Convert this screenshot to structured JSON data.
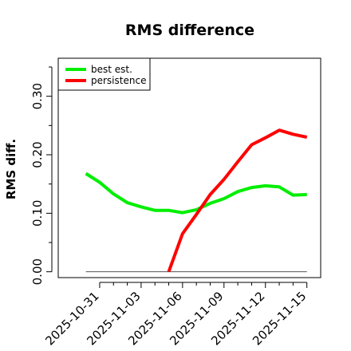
{
  "chart_data": {
    "type": "line",
    "title": "RMS difference",
    "ylabel": "RMS diff.",
    "xlabel": "",
    "ylim": [
      -0.01,
      0.365
    ],
    "yticks": [
      0.0,
      0.1,
      0.2,
      0.3
    ],
    "ytick_labels": [
      "0.00",
      "0.10",
      "0.20",
      "0.30"
    ],
    "yminor_ticks": [
      0.05,
      0.15,
      0.25,
      0.35
    ],
    "xlim": [
      "2025-10-28",
      "2025-11-16"
    ],
    "xticks": [
      "2025-10-31",
      "2025-11-03",
      "2025-11-06",
      "2025-11-09",
      "2025-11-12",
      "2025-11-15"
    ],
    "xminor_ticks": [
      "2025-11-01",
      "2025-11-02",
      "2025-11-04",
      "2025-11-05",
      "2025-11-07",
      "2025-11-08",
      "2025-11-10",
      "2025-11-11",
      "2025-11-13",
      "2025-11-14"
    ],
    "legend_position": "top-left",
    "zero_line": 0,
    "series": [
      {
        "name": "best est.",
        "color": "#00ee00",
        "x": [
          "2025-10-30",
          "2025-10-31",
          "2025-11-01",
          "2025-11-02",
          "2025-11-03",
          "2025-11-04",
          "2025-11-05",
          "2025-11-06",
          "2025-11-07",
          "2025-11-08",
          "2025-11-09",
          "2025-11-10",
          "2025-11-11",
          "2025-11-12",
          "2025-11-13",
          "2025-11-14",
          "2025-11-15"
        ],
        "values": [
          0.168,
          0.153,
          0.133,
          0.118,
          0.111,
          0.105,
          0.105,
          0.101,
          0.106,
          0.117,
          0.125,
          0.137,
          0.144,
          0.147,
          0.145,
          0.131,
          0.132
        ]
      },
      {
        "name": "persistence",
        "color": "#ff0000",
        "x": [
          "2025-11-05",
          "2025-11-06",
          "2025-11-07",
          "2025-11-08",
          "2025-11-09",
          "2025-11-10",
          "2025-11-11",
          "2025-11-12",
          "2025-11-13",
          "2025-11-14",
          "2025-11-15"
        ],
        "values": [
          0.0,
          0.065,
          0.098,
          0.132,
          0.158,
          0.188,
          0.217,
          0.229,
          0.242,
          0.235,
          0.23
        ]
      }
    ]
  }
}
